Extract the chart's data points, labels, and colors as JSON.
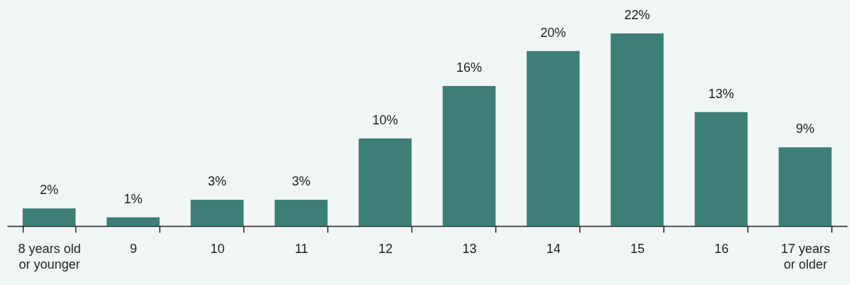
{
  "chart_data": {
    "type": "bar",
    "categories": [
      "8 years old\nor younger",
      "9",
      "10",
      "11",
      "12",
      "13",
      "14",
      "15",
      "16",
      "17 years\nor older"
    ],
    "values": [
      2,
      1,
      3,
      3,
      10,
      16,
      20,
      22,
      13,
      9
    ],
    "value_labels": [
      "2%",
      "1%",
      "3%",
      "3%",
      "10%",
      "16%",
      "20%",
      "22%",
      "13%",
      "9%"
    ],
    "color": "#3d7f78"
  }
}
